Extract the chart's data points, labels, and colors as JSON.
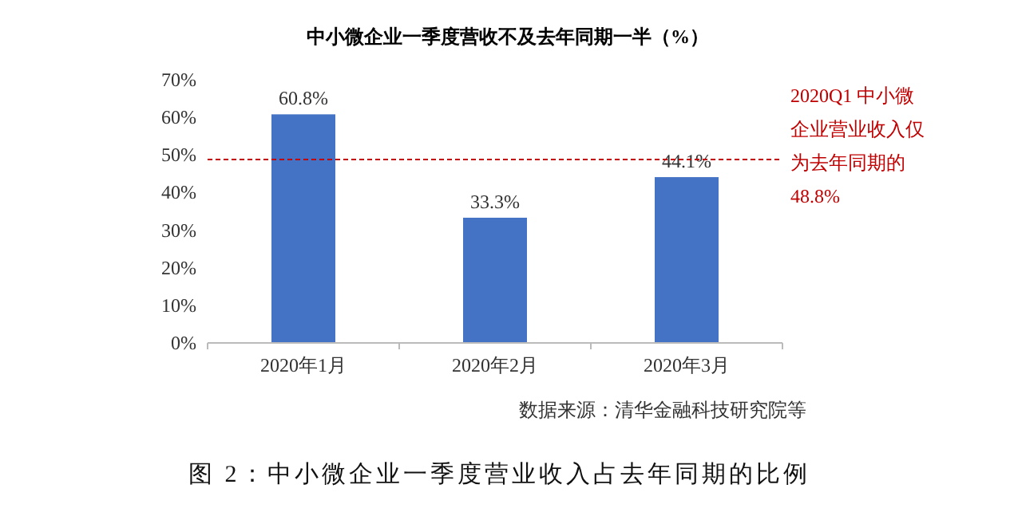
{
  "chart_data": {
    "type": "bar",
    "title": "中小微企业一季度营收不及去年同期一半（%）",
    "categories": [
      "2020年1月",
      "2020年2月",
      "2020年3月"
    ],
    "values": [
      60.8,
      33.3,
      44.1
    ],
    "color": "#4472c4",
    "value_labels": [
      "60.8%",
      "33.3%",
      "44.1%"
    ],
    "ylim": [
      0,
      70
    ],
    "yticks": [
      {
        "value": 0,
        "label": "0%"
      },
      {
        "value": 10,
        "label": "10%"
      },
      {
        "value": 20,
        "label": "20%"
      },
      {
        "value": 30,
        "label": "30%"
      },
      {
        "value": 40,
        "label": "40%"
      },
      {
        "value": 50,
        "label": "50%"
      },
      {
        "value": 60,
        "label": "60%"
      },
      {
        "value": 70,
        "label": "70%"
      }
    ],
    "ref_lines": [
      {
        "axis": "y",
        "value": 48.8,
        "label": "2020Q1 中小微企业营业收入仅为去年同期的48.8%",
        "color": "#c00000",
        "line_style": "dashed"
      }
    ],
    "annotations": [
      "数据来源：清华金融科技研究院等",
      "图 2：中小微企业一季度营业收入占去年同期的比例"
    ]
  }
}
